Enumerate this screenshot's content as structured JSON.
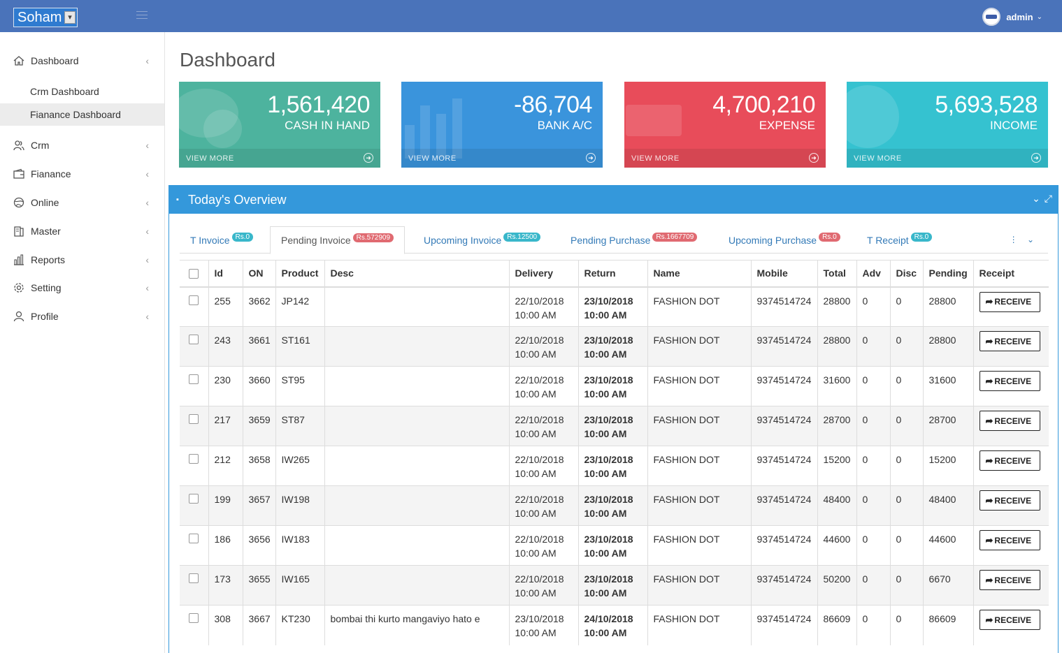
{
  "header": {
    "brand": "Soham",
    "user": "admin"
  },
  "sidebar": {
    "items": [
      {
        "label": "Dashboard",
        "icon": "home-icon"
      },
      {
        "label": "Crm",
        "icon": "users-icon"
      },
      {
        "label": "Fianance",
        "icon": "wallet-icon"
      },
      {
        "label": "Online",
        "icon": "globe-icon"
      },
      {
        "label": "Master",
        "icon": "book-icon"
      },
      {
        "label": "Reports",
        "icon": "bar-chart-icon"
      },
      {
        "label": "Setting",
        "icon": "gear-icon"
      },
      {
        "label": "Profile",
        "icon": "user-icon"
      }
    ],
    "sub_items": [
      {
        "label": "Crm Dashboard"
      },
      {
        "label": "Fianance Dashboard"
      }
    ]
  },
  "page": {
    "title": "Dashboard"
  },
  "stats": [
    {
      "value": "1,561,420",
      "label": "CASH IN HAND",
      "more": "VIEW MORE",
      "color": "#4db39e"
    },
    {
      "value": "-86,704",
      "label": "BANK A/C",
      "more": "VIEW MORE",
      "color": "#3a94dc"
    },
    {
      "value": "4,700,210",
      "label": "EXPENSE",
      "more": "VIEW MORE",
      "color": "#e84c5a"
    },
    {
      "value": "5,693,528",
      "label": "INCOME",
      "more": "VIEW MORE",
      "color": "#35c2d0"
    }
  ],
  "panel": {
    "title": "Today's Overview"
  },
  "tabs": [
    {
      "label": "T Invoice",
      "badge": "Rs.0",
      "badge_color": "teal"
    },
    {
      "label": "Pending Invoice",
      "badge": "Rs.572909",
      "badge_color": "red"
    },
    {
      "label": "Upcoming Invoice",
      "badge": "Rs.12500",
      "badge_color": "teal"
    },
    {
      "label": "Pending Purchase",
      "badge": "Rs.1667709",
      "badge_color": "red"
    },
    {
      "label": "Upcoming Purchase",
      "badge": "Rs.0",
      "badge_color": "red"
    },
    {
      "label": "T Receipt",
      "badge": "Rs.0",
      "badge_color": "teal"
    }
  ],
  "table": {
    "columns": [
      "Id",
      "ON",
      "Product",
      "Desc",
      "Delivery",
      "Return",
      "Name",
      "Mobile",
      "Total",
      "Adv",
      "Disc",
      "Pending",
      "Receipt"
    ],
    "button_label": "RECEIVE",
    "rows": [
      {
        "id": "255",
        "on": "3662",
        "product": "JP142",
        "desc": "",
        "delivery_date": "22/10/2018",
        "delivery_time": "10:00 AM",
        "return_date": "23/10/2018",
        "return_time": "10:00 AM",
        "name": "FASHION DOT",
        "mobile": "9374514724",
        "total": "28800",
        "adv": "0",
        "disc": "0",
        "pending": "28800"
      },
      {
        "id": "243",
        "on": "3661",
        "product": "ST161",
        "desc": "",
        "delivery_date": "22/10/2018",
        "delivery_time": "10:00 AM",
        "return_date": "23/10/2018",
        "return_time": "10:00 AM",
        "name": "FASHION DOT",
        "mobile": "9374514724",
        "total": "28800",
        "adv": "0",
        "disc": "0",
        "pending": "28800"
      },
      {
        "id": "230",
        "on": "3660",
        "product": "ST95",
        "desc": "",
        "delivery_date": "22/10/2018",
        "delivery_time": "10:00 AM",
        "return_date": "23/10/2018",
        "return_time": "10:00 AM",
        "name": "FASHION DOT",
        "mobile": "9374514724",
        "total": "31600",
        "adv": "0",
        "disc": "0",
        "pending": "31600"
      },
      {
        "id": "217",
        "on": "3659",
        "product": "ST87",
        "desc": "",
        "delivery_date": "22/10/2018",
        "delivery_time": "10:00 AM",
        "return_date": "23/10/2018",
        "return_time": "10:00 AM",
        "name": "FASHION DOT",
        "mobile": "9374514724",
        "total": "28700",
        "adv": "0",
        "disc": "0",
        "pending": "28700"
      },
      {
        "id": "212",
        "on": "3658",
        "product": "IW265",
        "desc": "",
        "delivery_date": "22/10/2018",
        "delivery_time": "10:00 AM",
        "return_date": "23/10/2018",
        "return_time": "10:00 AM",
        "name": "FASHION DOT",
        "mobile": "9374514724",
        "total": "15200",
        "adv": "0",
        "disc": "0",
        "pending": "15200"
      },
      {
        "id": "199",
        "on": "3657",
        "product": "IW198",
        "desc": "",
        "delivery_date": "22/10/2018",
        "delivery_time": "10:00 AM",
        "return_date": "23/10/2018",
        "return_time": "10:00 AM",
        "name": "FASHION DOT",
        "mobile": "9374514724",
        "total": "48400",
        "adv": "0",
        "disc": "0",
        "pending": "48400"
      },
      {
        "id": "186",
        "on": "3656",
        "product": "IW183",
        "desc": "",
        "delivery_date": "22/10/2018",
        "delivery_time": "10:00 AM",
        "return_date": "23/10/2018",
        "return_time": "10:00 AM",
        "name": "FASHION DOT",
        "mobile": "9374514724",
        "total": "44600",
        "adv": "0",
        "disc": "0",
        "pending": "44600"
      },
      {
        "id": "173",
        "on": "3655",
        "product": "IW165",
        "desc": "",
        "delivery_date": "22/10/2018",
        "delivery_time": "10:00 AM",
        "return_date": "23/10/2018",
        "return_time": "10:00 AM",
        "name": "FASHION DOT",
        "mobile": "9374514724",
        "total": "50200",
        "adv": "0",
        "disc": "0",
        "pending": "6670"
      },
      {
        "id": "308",
        "on": "3667",
        "product": "KT230",
        "desc": "bombai thi kurto mangaviyo hato e",
        "delivery_date": "23/10/2018",
        "delivery_time": "10:00 AM",
        "return_date": "24/10/2018",
        "return_time": "10:00 AM",
        "name": "FASHION DOT",
        "mobile": "9374514724",
        "total": "86609",
        "adv": "0",
        "disc": "0",
        "pending": "86609"
      }
    ]
  }
}
